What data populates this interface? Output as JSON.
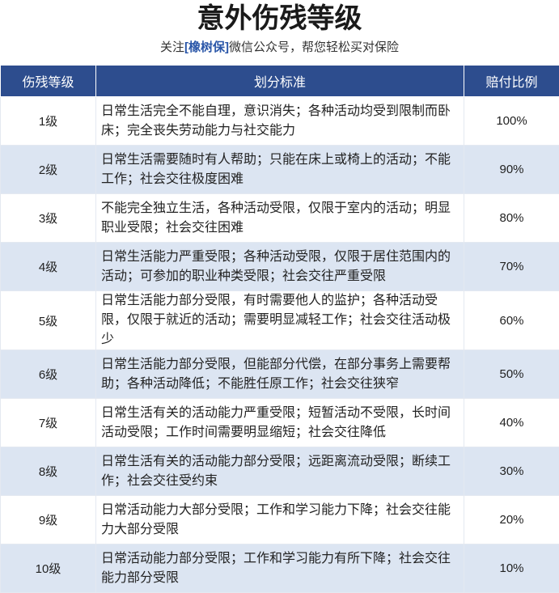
{
  "header": {
    "title": "意外伤残等级",
    "subtitle": {
      "prefix": "关注",
      "highlight": "[橡树保]",
      "suffix": "微信公众号，帮您轻松买对保险"
    }
  },
  "table": {
    "columns": [
      "伤残等级",
      "划分标准",
      "赔付比例"
    ],
    "rows": [
      [
        "1级",
        "日常生活完全不能自理，意识消失；各种活动均受到限制而卧床；完全丧失劳动能力与社交能力",
        "100%"
      ],
      [
        "2级",
        "日常生活需要随时有人帮助；只能在床上或椅上的活动；不能工作；社会交往极度困难",
        "90%"
      ],
      [
        "3级",
        "不能完全独立生活，各种活动受限，仅限于室内的活动；明显职业受限；社会交往困难",
        "80%"
      ],
      [
        "4级",
        "日常生活能力严重受限；各种活动受限，仅限于居住范围内的活动；可参加的职业种类受限；社会交往严重受限",
        "70%"
      ],
      [
        "5级",
        "日常生活能力部分受限，有时需要他人的监护；各种活动受限，仅限于就近的活动；需要明显减轻工作；社会交往活动极少",
        "60%"
      ],
      [
        "6级",
        "日常生活能力部分受限，但能部分代偿，在部分事务上需要帮助；各种活动降低；不能胜任原工作；社会交往狭窄",
        "50%"
      ],
      [
        "7级",
        "日常生活有关的活动能力严重受限；短暂活动不受限，长时间活动受限；工作时间需要明显缩短；社会交往降低",
        "40%"
      ],
      [
        "8级",
        "日常生活有关的活动能力部分受限；远距离流动受限；断续工作；社会交往受约束",
        "30%"
      ],
      [
        "9级",
        "日常活动能力大部分受限；工作和学习能力下降；社会交往能力大部分受限",
        "20%"
      ],
      [
        "10级",
        "日常活动能力部分受限；工作和学习能力有所下降；社会交往能力部分受限",
        "10%"
      ]
    ]
  }
}
